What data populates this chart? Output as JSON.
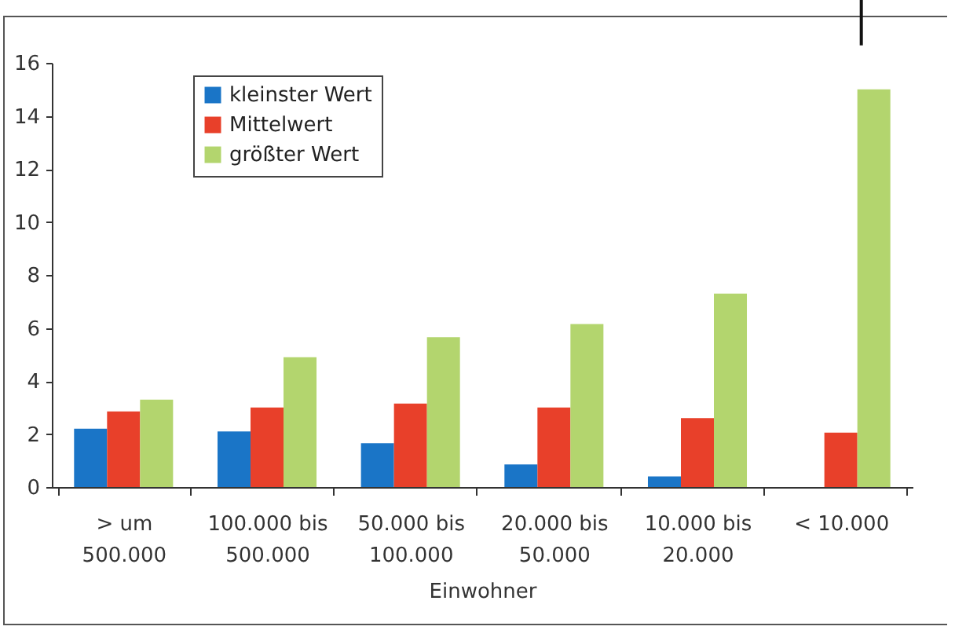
{
  "chart_data": {
    "type": "bar",
    "xlabel": "Einwohner",
    "categories": [
      "> um 500.000",
      "100.000 bis 500.000",
      "50.000 bis 100.000",
      "20.000 bis 50.000",
      "10.000 bis 20.000",
      "< 10.000"
    ],
    "series": [
      {
        "name": "kleinster Wert",
        "color": "#1a75c7",
        "values": [
          2.2,
          2.1,
          1.65,
          0.85,
          0.4,
          null
        ]
      },
      {
        "name": "Mittelwert",
        "color": "#e8402a",
        "values": [
          2.85,
          3.0,
          3.15,
          3.0,
          2.6,
          2.05
        ]
      },
      {
        "name": "größter Wert",
        "color": "#b3d56e",
        "values": [
          3.3,
          4.9,
          5.65,
          6.15,
          7.3,
          15
        ]
      }
    ],
    "ylim": [
      0,
      16
    ],
    "yticks": [
      0,
      2,
      4,
      6,
      8,
      10,
      12,
      14,
      16
    ],
    "grid": false,
    "legend": "top left"
  }
}
